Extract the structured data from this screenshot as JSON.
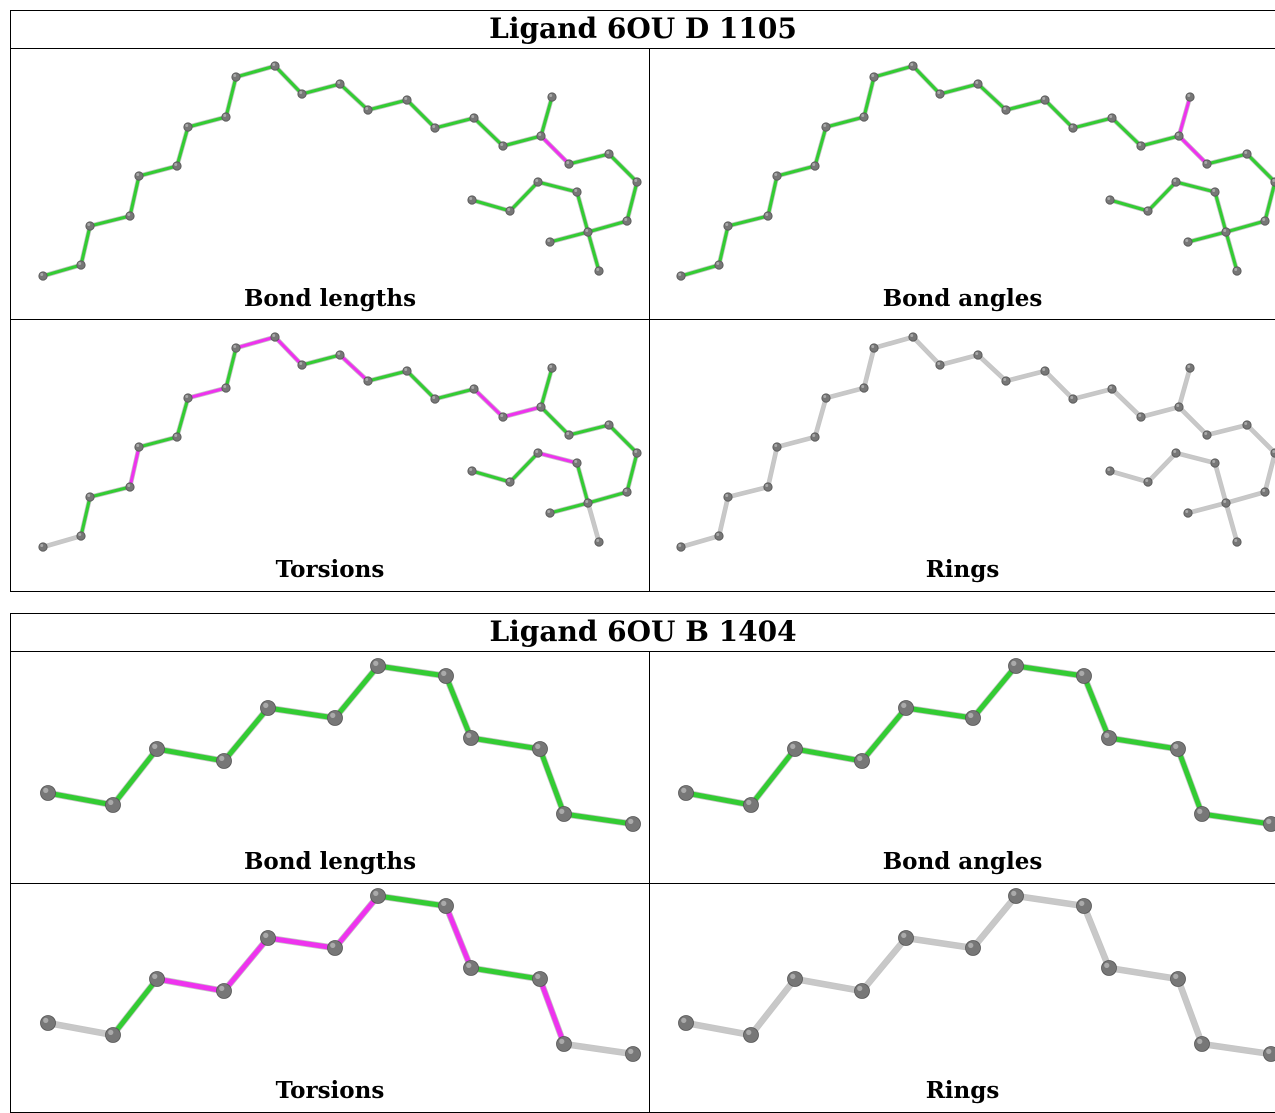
{
  "colors": {
    "ok": "#33cc33",
    "outlier": "#ee33ee",
    "neutral": "#c8c8c8",
    "atom": "#777777"
  },
  "ligands": [
    {
      "title": "Ligand 6OU D 1105",
      "panels": [
        {
          "caption": "Bond lengths"
        },
        {
          "caption": "Bond angles"
        },
        {
          "caption": "Torsions"
        },
        {
          "caption": "Rings"
        }
      ]
    },
    {
      "title": "Ligand 6OU B 1404",
      "panels": [
        {
          "caption": "Bond lengths"
        },
        {
          "caption": "Bond angles"
        },
        {
          "caption": "Torsions"
        },
        {
          "caption": "Rings"
        }
      ]
    }
  ]
}
